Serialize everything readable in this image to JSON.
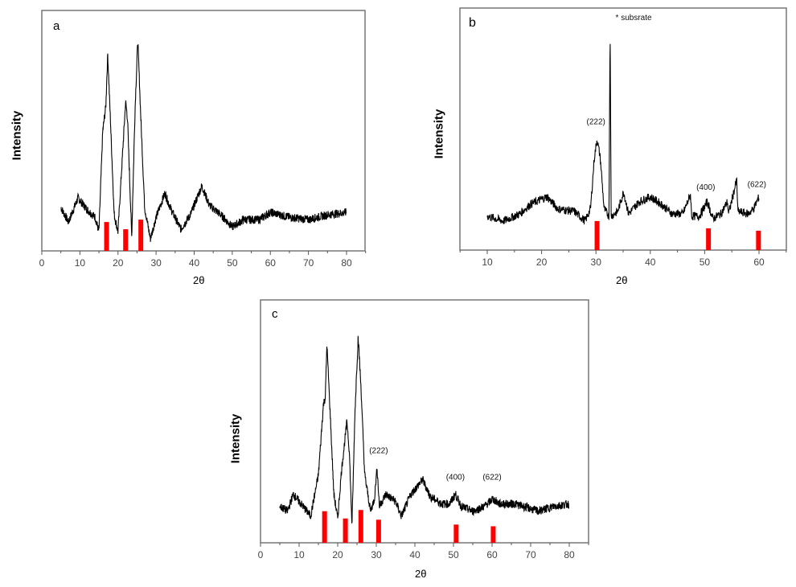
{
  "figure": {
    "panels": [
      "a",
      "b",
      "c"
    ]
  },
  "chart_data": [
    {
      "type": "line",
      "panel_label": "a",
      "title": "",
      "xlabel": "2θ",
      "ylabel": "Intensity",
      "xlim": [
        0,
        85
      ],
      "xticks": [
        0,
        10,
        20,
        30,
        40,
        50,
        60,
        70,
        80
      ],
      "x_range_data": [
        5,
        80
      ],
      "grid": false,
      "series": [
        {
          "name": "XRD pattern",
          "color": "#000000",
          "points": [
            [
              5,
              0.18
            ],
            [
              7,
              0.12
            ],
            [
              9.5,
              0.22
            ],
            [
              12,
              0.17
            ],
            [
              14,
              0.14
            ],
            [
              15,
              0.08
            ],
            [
              16,
              0.5
            ],
            [
              16.8,
              0.6
            ],
            [
              17.3,
              0.82
            ],
            [
              18,
              0.55
            ],
            [
              19,
              0.15
            ],
            [
              20,
              0.08
            ],
            [
              21,
              0.35
            ],
            [
              22,
              0.62
            ],
            [
              22.5,
              0.55
            ],
            [
              23.6,
              0.06
            ],
            [
              24.5,
              0.6
            ],
            [
              25.2,
              0.88
            ],
            [
              26,
              0.55
            ],
            [
              27,
              0.18
            ],
            [
              28.5,
              0.05
            ],
            [
              30,
              0.14
            ],
            [
              32.3,
              0.24
            ],
            [
              34,
              0.17
            ],
            [
              36.5,
              0.09
            ],
            [
              39,
              0.15
            ],
            [
              42,
              0.27
            ],
            [
              44,
              0.19
            ],
            [
              47,
              0.15
            ],
            [
              50,
              0.1
            ],
            [
              53,
              0.13
            ],
            [
              57,
              0.13
            ],
            [
              60,
              0.16
            ],
            [
              65,
              0.14
            ],
            [
              70,
              0.13
            ],
            [
              75,
              0.15
            ],
            [
              80,
              0.16
            ]
          ]
        }
      ],
      "reference_bars": {
        "color": "#ff0000",
        "bars": [
          {
            "x": 17.0,
            "height": 0.12
          },
          {
            "x": 22.0,
            "height": 0.09
          },
          {
            "x": 26.0,
            "height": 0.13
          }
        ]
      },
      "annotations": []
    },
    {
      "type": "line",
      "panel_label": "b",
      "title": "",
      "xlabel": "2θ",
      "ylabel": "Intensity",
      "xlim": [
        5,
        65
      ],
      "xticks": [
        10,
        20,
        30,
        40,
        50,
        60
      ],
      "x_range_data": [
        10,
        60
      ],
      "grid": false,
      "series": [
        {
          "name": "XRD pattern",
          "color": "#000000",
          "points": [
            [
              10,
              0.14
            ],
            [
              13,
              0.12
            ],
            [
              16,
              0.15
            ],
            [
              18,
              0.19
            ],
            [
              21,
              0.22
            ],
            [
              23,
              0.17
            ],
            [
              26,
              0.16
            ],
            [
              28,
              0.12
            ],
            [
              29,
              0.17
            ],
            [
              29.7,
              0.38
            ],
            [
              30.2,
              0.46
            ],
            [
              30.8,
              0.38
            ],
            [
              31.5,
              0.17
            ],
            [
              32.4,
              0.14
            ],
            [
              32.6,
              0.95
            ],
            [
              32.8,
              0.14
            ],
            [
              34,
              0.16
            ],
            [
              35.1,
              0.24
            ],
            [
              36,
              0.15
            ],
            [
              38,
              0.2
            ],
            [
              40,
              0.22
            ],
            [
              42,
              0.19
            ],
            [
              44,
              0.15
            ],
            [
              46,
              0.15
            ],
            [
              47.4,
              0.23
            ],
            [
              47.6,
              0.14
            ],
            [
              49,
              0.14
            ],
            [
              50.5,
              0.2
            ],
            [
              51.5,
              0.13
            ],
            [
              53,
              0.15
            ],
            [
              54.2,
              0.2
            ],
            [
              54.4,
              0.15
            ],
            [
              55.9,
              0.29
            ],
            [
              56.1,
              0.16
            ],
            [
              58,
              0.15
            ],
            [
              59,
              0.17
            ],
            [
              60,
              0.22
            ]
          ]
        }
      ],
      "reference_bars": {
        "color": "#ff0000",
        "bars": [
          {
            "x": 30.2,
            "height": 0.12
          },
          {
            "x": 50.7,
            "height": 0.09
          },
          {
            "x": 59.9,
            "height": 0.08
          }
        ]
      },
      "annotations": [
        {
          "text": "* subsrate",
          "x": 33.6,
          "y": 0.95
        },
        {
          "text": "(222)",
          "x": 30.0,
          "y": 0.52
        },
        {
          "text": "(400)",
          "x": 50.2,
          "y": 0.25
        },
        {
          "text": "(622)",
          "x": 59.6,
          "y": 0.26
        }
      ]
    },
    {
      "type": "line",
      "panel_label": "c",
      "title": "",
      "xlabel": "2θ",
      "ylabel": "Intensity",
      "xlim": [
        0,
        85
      ],
      "xticks": [
        0,
        10,
        20,
        30,
        40,
        50,
        60,
        70,
        80
      ],
      "x_range_data": [
        5,
        80
      ],
      "grid": false,
      "series": [
        {
          "name": "XRD pattern",
          "color": "#000000",
          "points": [
            [
              5,
              0.15
            ],
            [
              7,
              0.13
            ],
            [
              8.5,
              0.2
            ],
            [
              11,
              0.15
            ],
            [
              13,
              0.11
            ],
            [
              15,
              0.28
            ],
            [
              16.3,
              0.57
            ],
            [
              16.8,
              0.6
            ],
            [
              17.2,
              0.82
            ],
            [
              18,
              0.55
            ],
            [
              19,
              0.2
            ],
            [
              20,
              0.1
            ],
            [
              21,
              0.3
            ],
            [
              22.4,
              0.5
            ],
            [
              23,
              0.38
            ],
            [
              23.7,
              0.07
            ],
            [
              24.5,
              0.55
            ],
            [
              25.3,
              0.85
            ],
            [
              26,
              0.65
            ],
            [
              27,
              0.28
            ],
            [
              28.5,
              0.13
            ],
            [
              29.5,
              0.18
            ],
            [
              30.2,
              0.31
            ],
            [
              30.8,
              0.15
            ],
            [
              32.5,
              0.2
            ],
            [
              35,
              0.17
            ],
            [
              36.5,
              0.11
            ],
            [
              39,
              0.2
            ],
            [
              42,
              0.26
            ],
            [
              44,
              0.19
            ],
            [
              47,
              0.16
            ],
            [
              49,
              0.16
            ],
            [
              50.5,
              0.2
            ],
            [
              52,
              0.15
            ],
            [
              55,
              0.13
            ],
            [
              58,
              0.15
            ],
            [
              60.2,
              0.18
            ],
            [
              62,
              0.16
            ],
            [
              66,
              0.16
            ],
            [
              70,
              0.14
            ],
            [
              72,
              0.13
            ],
            [
              76,
              0.15
            ],
            [
              80,
              0.16
            ]
          ]
        }
      ],
      "reference_bars": {
        "color": "#ff0000",
        "bars": [
          {
            "x": 16.6,
            "height": 0.13
          },
          {
            "x": 22.0,
            "height": 0.1
          },
          {
            "x": 26.0,
            "height": 0.135
          },
          {
            "x": 30.6,
            "height": 0.095
          },
          {
            "x": 50.7,
            "height": 0.075
          },
          {
            "x": 60.3,
            "height": 0.068
          }
        ]
      },
      "annotations": [
        {
          "text": "(222)",
          "x": 30.6,
          "y": 0.37
        },
        {
          "text": "(400)",
          "x": 50.5,
          "y": 0.26
        },
        {
          "text": "(622)",
          "x": 60.0,
          "y": 0.26
        }
      ]
    }
  ]
}
